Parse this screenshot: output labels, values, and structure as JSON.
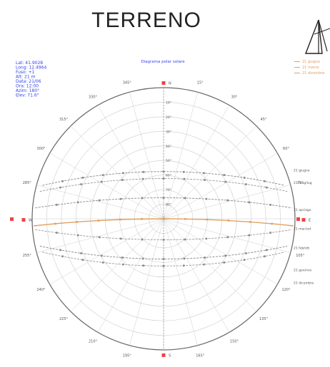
{
  "title": "TERRENO",
  "header_label": "Diagrama polar solare",
  "info_lines": [
    "Lat: 41.9028",
    "Long: 12.4964",
    "Fuso: +1",
    "Alt: 21 m",
    "Data: 21/06",
    "Ora: 12:00",
    "Azim: 180°",
    "Elev: 71.6°"
  ],
  "legend_items": [
    "21 giugno",
    "21 marzo",
    "21 dicembre"
  ],
  "compass_labels": {
    "top": "N",
    "bottom": "S",
    "left": "W",
    "right": "E"
  },
  "azimuth_step_deg": 15,
  "altitude_labels": [
    "10°",
    "20°",
    "30°",
    "40°",
    "50°",
    "60°",
    "70°",
    "80°"
  ],
  "sun_path_labels": [
    {
      "text": "21 giugno",
      "alt": 71
    },
    {
      "text": "21 mag/lug",
      "alt": 64
    },
    {
      "text": "21 apr/ago",
      "alt": 48
    },
    {
      "text": "21 mar/set",
      "alt": 37
    },
    {
      "text": "21 feb/ott",
      "alt": 26
    },
    {
      "text": "21 gen/nov",
      "alt": 13
    },
    {
      "text": "21 dicembre",
      "alt": 6
    }
  ],
  "sun_paths": [
    {
      "elev": 71,
      "color": "#888888"
    },
    {
      "elev": 67,
      "color": "#999999"
    },
    {
      "elev": 56,
      "color": "#888888"
    },
    {
      "elev": 44,
      "color": "#e0a060"
    },
    {
      "elev": 32,
      "color": "#999999"
    },
    {
      "elev": 21,
      "color": "#888888"
    },
    {
      "elev": 17,
      "color": "#999999"
    }
  ],
  "colors": {
    "info_text": "#3344ee",
    "highlight_path": "#e0a060",
    "marker": "#ee4444",
    "grid": "#cccccc"
  }
}
